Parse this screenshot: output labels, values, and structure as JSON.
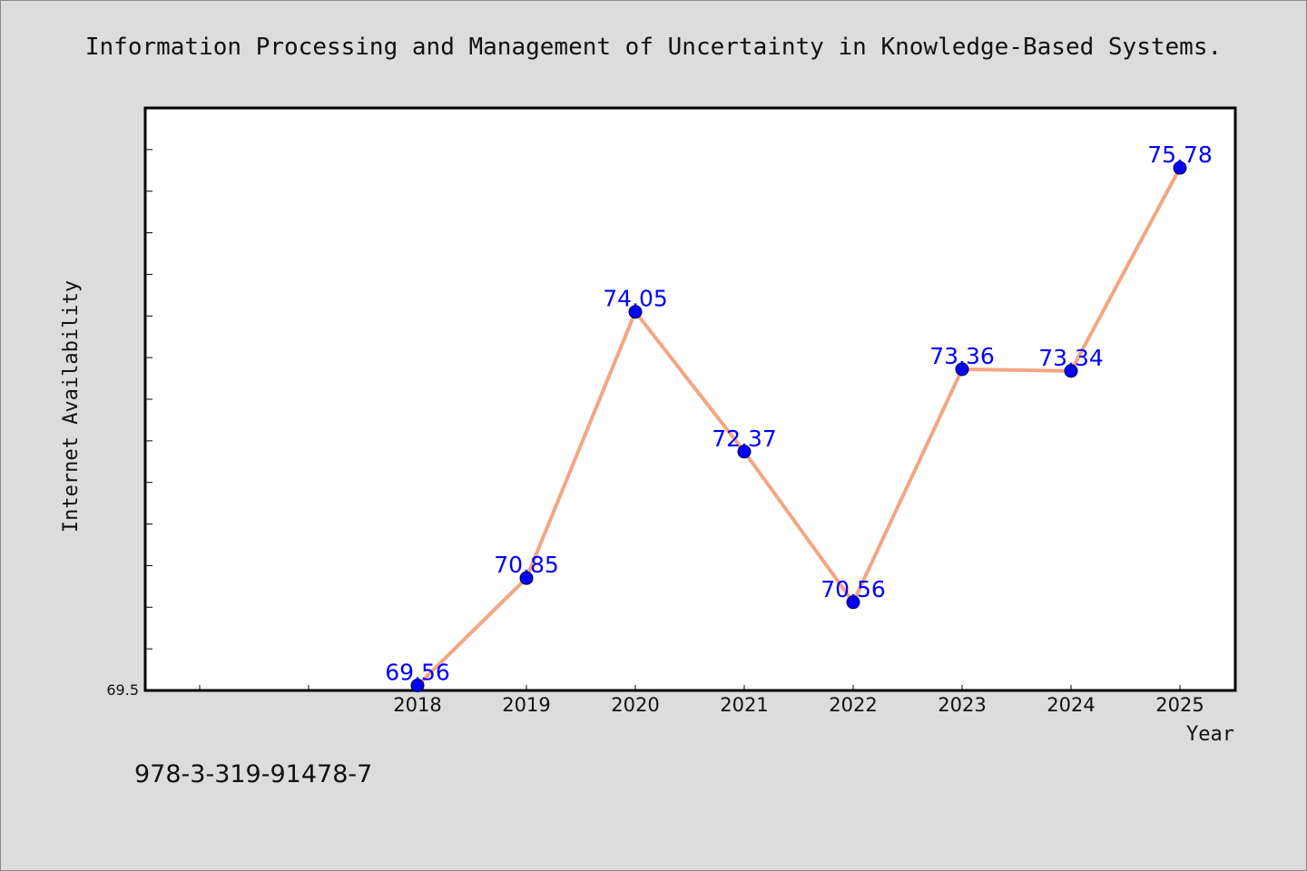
{
  "chart_data": {
    "type": "line",
    "title": "Information Processing and Management of Uncertainty in Knowledge-Based Systems.",
    "xlabel": "Year",
    "ylabel": "Internet Availability",
    "x": [
      "2018",
      "2019",
      "2020",
      "2021",
      "2022",
      "2023",
      "2024",
      "2025"
    ],
    "series": [
      {
        "values": [
          69.56,
          70.85,
          74.05,
          72.37,
          70.56,
          73.36,
          73.34,
          75.78
        ]
      }
    ],
    "data_labels": [
      "69.56",
      "70.85",
      "74.05",
      "72.37",
      "70.56",
      "73.36",
      "73.34",
      "75.78"
    ],
    "y_tick_labels": [
      "69.5"
    ],
    "ylim": [
      69.5,
      76.5
    ],
    "grid": false,
    "line_color": "#f4a582",
    "marker_color": "#0000ff",
    "label_color": "#0000ff"
  },
  "footer": {
    "isbn": "978-3-319-91478-7"
  }
}
